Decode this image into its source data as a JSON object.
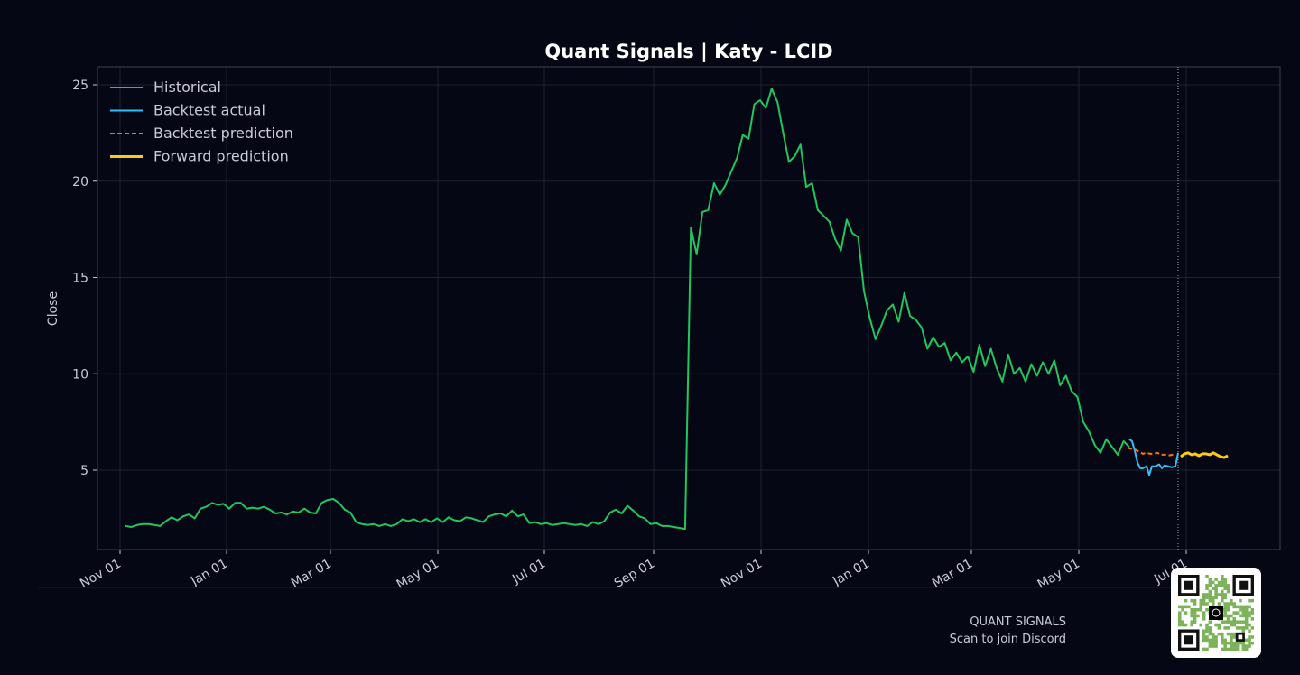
{
  "chart_data": {
    "type": "line",
    "title": "Quant Signals | Katy - LCID",
    "xlabel": "",
    "ylabel": "Close",
    "xlim": [
      "2023-10-20",
      "2025-07-28"
    ],
    "ylim": [
      0.8,
      26.0
    ],
    "grid": true,
    "legend_position": "top-left",
    "x_ticks": [
      {
        "date": "2023-11-01",
        "label": "Nov 01"
      },
      {
        "date": "2024-01-01",
        "label": "Jan 01"
      },
      {
        "date": "2024-03-01",
        "label": "Mar 01"
      },
      {
        "date": "2024-05-01",
        "label": "May 01"
      },
      {
        "date": "2024-07-01",
        "label": "Jul 01"
      },
      {
        "date": "2024-09-01",
        "label": "Sep 01"
      },
      {
        "date": "2024-11-01",
        "label": "Nov 01"
      },
      {
        "date": "2025-01-01",
        "label": "Jan 01"
      },
      {
        "date": "2025-03-01",
        "label": "Mar 01"
      },
      {
        "date": "2025-05-01",
        "label": "May 01"
      },
      {
        "date": "2025-07-01",
        "label": "Jul 01"
      }
    ],
    "y_ticks": [
      {
        "value": 5,
        "label": "5"
      },
      {
        "value": 10,
        "label": "10"
      },
      {
        "value": 15,
        "label": "15"
      },
      {
        "value": 20,
        "label": "20"
      },
      {
        "value": 25,
        "label": "25"
      }
    ],
    "vline_date": "2025-06-26",
    "series": [
      {
        "name": "Historical",
        "color": "#22c55e",
        "style": "solid",
        "points": [
          [
            "2023-11-18",
            2.1
          ],
          [
            "2023-11-25",
            2.2
          ],
          [
            "2023-12-02",
            2.2
          ],
          [
            "2023-12-09",
            2.2
          ],
          [
            "2023-12-16",
            2.6
          ],
          [
            "2023-12-23",
            2.5
          ],
          [
            "2023-12-30",
            2.8
          ],
          [
            "2024-01-06",
            3.2
          ],
          [
            "2024-01-13",
            3.2
          ],
          [
            "2024-01-20",
            3.3
          ],
          [
            "2024-01-27",
            3.0
          ],
          [
            "2024-02-03",
            3.1
          ],
          [
            "2024-02-10",
            3.0
          ],
          [
            "2024-02-17",
            2.8
          ],
          [
            "2024-02-24",
            2.8
          ],
          [
            "2024-03-02",
            2.9
          ],
          [
            "2024-03-09",
            3.3
          ],
          [
            "2024-03-16",
            3.5
          ],
          [
            "2024-03-23",
            2.8
          ],
          [
            "2024-03-30",
            2.3
          ],
          [
            "2024-04-06",
            2.2
          ],
          [
            "2024-04-13",
            2.1
          ],
          [
            "2024-04-20",
            2.4
          ],
          [
            "2024-04-27",
            2.4
          ],
          [
            "2024-05-04",
            2.5
          ],
          [
            "2024-05-11",
            2.4
          ],
          [
            "2024-05-18",
            2.5
          ],
          [
            "2024-05-25",
            2.4
          ],
          [
            "2024-06-01",
            2.6
          ],
          [
            "2024-06-08",
            2.6
          ],
          [
            "2024-06-15",
            2.4
          ],
          [
            "2024-06-22",
            2.6
          ],
          [
            "2024-06-29",
            2.9
          ],
          [
            "2024-07-06",
            2.7
          ],
          [
            "2024-07-13",
            2.3
          ],
          [
            "2024-07-20",
            2.2
          ],
          [
            "2024-07-27",
            2.2
          ],
          [
            "2024-08-03",
            2.2
          ],
          [
            "2024-08-10",
            2.3
          ],
          [
            "2024-08-17",
            2.2
          ],
          [
            "2024-08-24",
            2.2
          ],
          [
            "2024-08-31",
            2.2
          ],
          [
            "2024-09-07",
            3.1
          ],
          [
            "2024-09-14",
            2.9
          ],
          [
            "2024-09-21",
            2.5
          ],
          [
            "2024-09-28",
            2.2
          ],
          [
            "2024-10-05",
            2.2
          ],
          [
            "2024-10-12",
            2.3
          ],
          [
            "2024-10-19",
            2.1
          ],
          [
            "2024-10-26",
            2.0
          ],
          [
            "2024-10-30",
            17.6
          ],
          [
            "2024-11-02",
            16.2
          ],
          [
            "2024-11-05",
            18.4
          ],
          [
            "2024-11-12",
            19.8
          ],
          [
            "2024-11-19",
            21.0
          ],
          [
            "2024-11-26",
            22.6
          ],
          [
            "2024-12-03",
            24.0
          ],
          [
            "2024-12-06",
            23.8
          ],
          [
            "2024-12-10",
            24.8
          ],
          [
            "2024-12-14",
            24.1
          ],
          [
            "2024-12-17",
            21.2
          ],
          [
            "2024-12-24",
            21.8
          ],
          [
            "2024-12-28",
            19.6
          ],
          [
            "2025-01-04",
            18.6
          ],
          [
            "2025-01-11",
            18.0
          ],
          [
            "2025-01-18",
            17.2
          ],
          [
            "2025-01-25",
            16.4
          ],
          [
            "2025-01-28",
            17.8
          ],
          [
            "2025-02-01",
            17.2
          ],
          [
            "2025-02-08",
            14.2
          ],
          [
            "2025-02-15",
            12.6
          ],
          [
            "2025-02-22",
            13.0
          ],
          [
            "2025-03-01",
            13.6
          ],
          [
            "2025-03-08",
            12.6
          ],
          [
            "2025-03-12",
            14.2
          ],
          [
            "2025-03-19",
            12.9
          ],
          [
            "2025-03-26",
            12.4
          ],
          [
            "2025-04-02",
            11.6
          ],
          [
            "2025-04-09",
            11.4
          ],
          [
            "2025-04-16",
            11.0
          ],
          [
            "2025-04-23",
            10.8
          ],
          [
            "2025-04-30",
            10.2
          ],
          [
            "2025-05-07",
            11.3
          ],
          [
            "2025-05-14",
            10.9
          ],
          [
            "2025-05-21",
            10.8
          ],
          [
            "2025-05-28",
            10.2
          ],
          [
            "2025-06-04",
            10.6
          ],
          [
            "2025-06-11",
            10.0
          ],
          [
            "2025-06-18",
            9.6
          ]
        ],
        "date_shift_note": ""
      },
      {
        "name": "Backtest actual",
        "color": "#38bdf8",
        "style": "solid",
        "points": []
      },
      {
        "name": "Backtest prediction",
        "color": "#f97316",
        "style": "dashed",
        "points": []
      },
      {
        "name": "Forward prediction",
        "color": "#facc15",
        "style": "solid",
        "points": []
      }
    ]
  },
  "footer": {
    "brand": "QUANT SIGNALS",
    "cta": "Scan to join Discord"
  },
  "colors": {
    "background": "#050814",
    "grid": "#1c2233",
    "axis": "#3a4152",
    "text": "#c7ccd8",
    "title": "#ffffff",
    "vline": "#9ca3af",
    "qr_green": "#7cb35a",
    "qr_dark": "#111111"
  },
  "icons": {
    "qr": "qr-code-icon"
  }
}
